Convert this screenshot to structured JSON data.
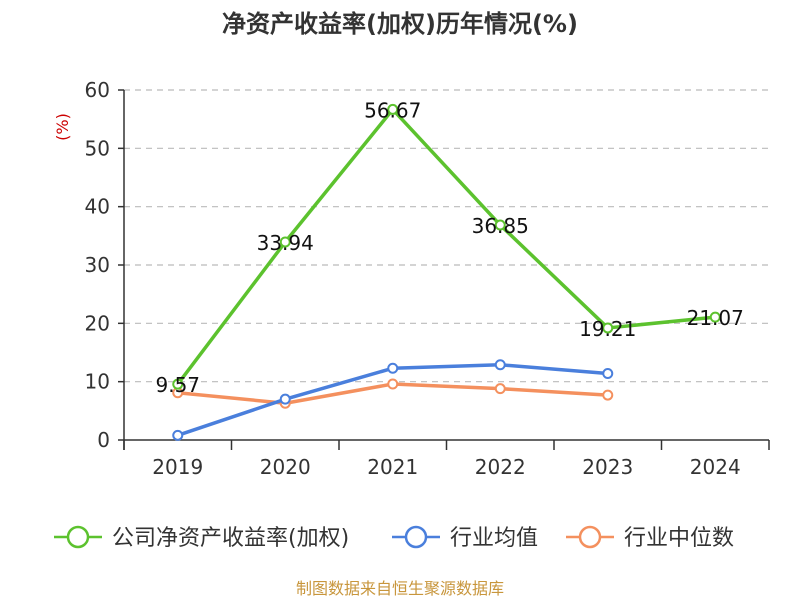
{
  "chart_data": {
    "type": "line",
    "title": "净资产收益率(加权)历年情况(%)",
    "ylabel": "(%)",
    "categories": [
      "2019",
      "2020",
      "2021",
      "2022",
      "2023",
      "2024"
    ],
    "ylim": [
      0,
      60
    ],
    "yticks": [
      "0",
      "10",
      "20",
      "30",
      "40",
      "50",
      "60"
    ],
    "grid": "horizontal-dashed",
    "legend_position": "bottom",
    "series": [
      {
        "name": "公司净资产收益率(加权)",
        "color": "#5cc22e",
        "values": [
          9.57,
          33.94,
          56.67,
          36.85,
          19.21,
          21.07
        ],
        "labels": [
          "9.57",
          "33.94",
          "56.67",
          "36.85",
          "19.21",
          "21.07"
        ]
      },
      {
        "name": "行业均值",
        "color": "#4a7fdc",
        "values": [
          0.8,
          7.0,
          12.3,
          12.9,
          11.4,
          null
        ]
      },
      {
        "name": "行业中位数",
        "color": "#f4905e",
        "values": [
          8.1,
          6.3,
          9.6,
          8.8,
          7.7,
          null
        ]
      }
    ]
  },
  "source_text": "制图数据来自恒生聚源数据库",
  "colors": {
    "unit_label": "#cc0000",
    "source_text": "#c8963c",
    "grid": "#bbbbbb",
    "axis": "#333333"
  }
}
